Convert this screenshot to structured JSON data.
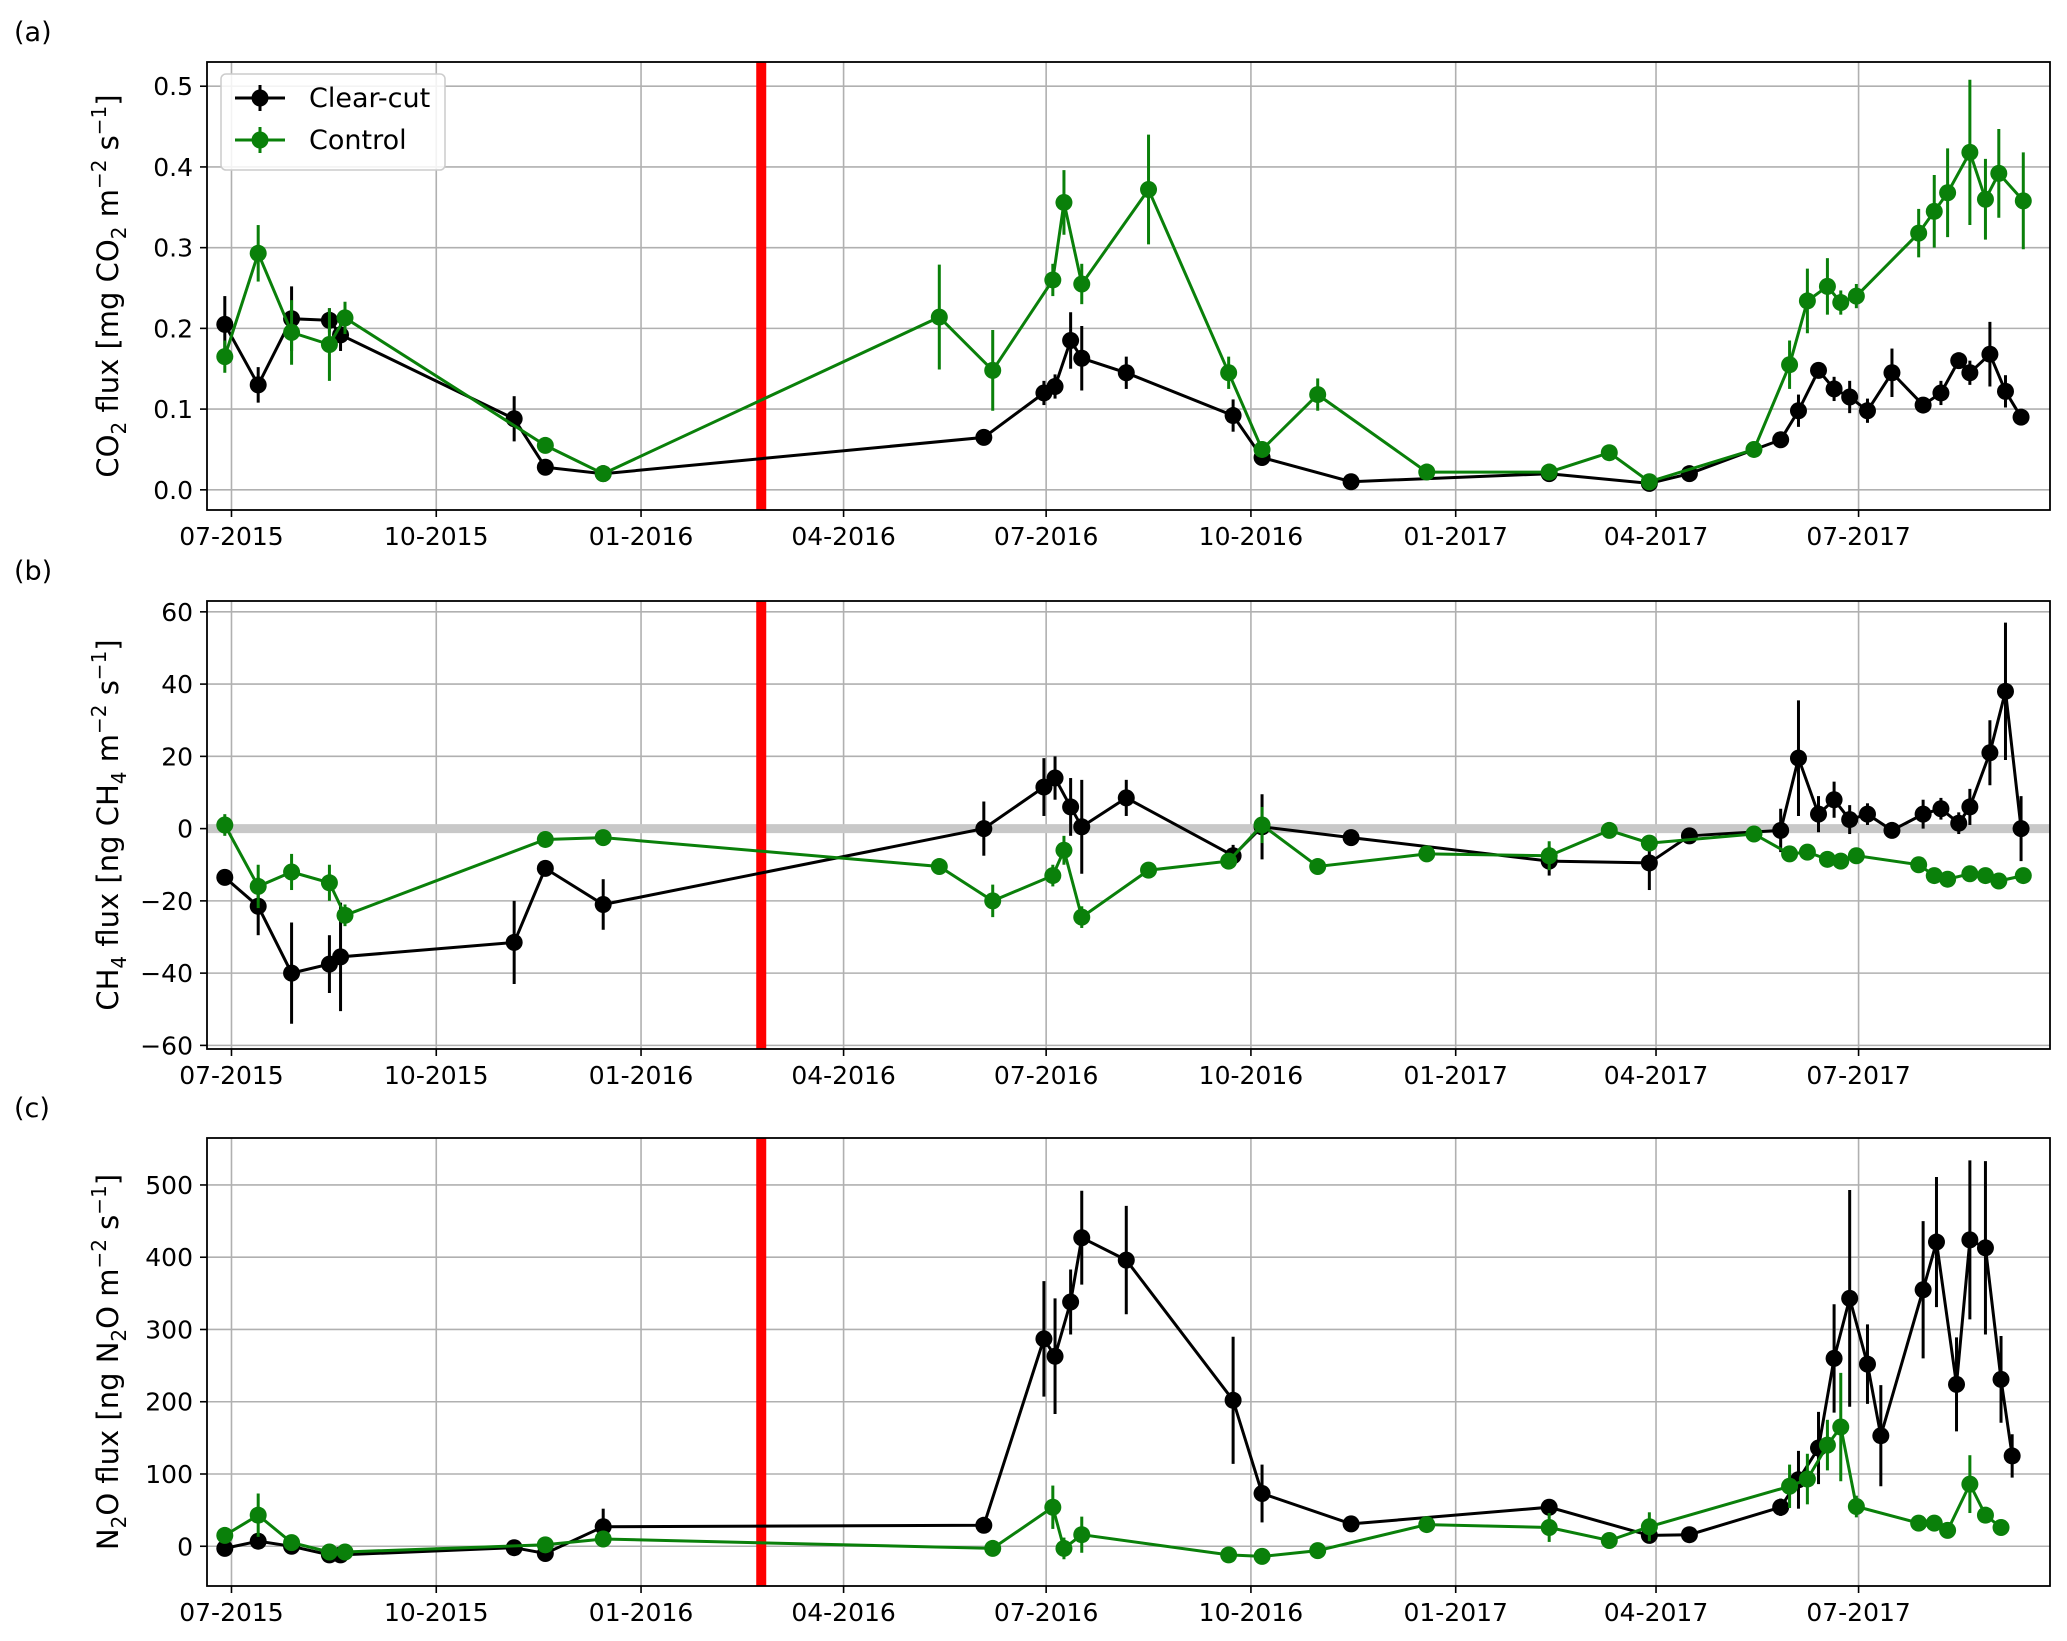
{
  "figure": {
    "clearing_date": "2016-02-24",
    "colors": {
      "clear_cut": "#000000",
      "control": "#0a800a",
      "clearing_line": "#ff0000",
      "zero_line": "#c8c8c8",
      "grid": "#b0b0b0"
    },
    "legend": {
      "entries": [
        "Clear-cut",
        "Control"
      ],
      "placement": "upper-left of panel (a)"
    }
  },
  "chart_data": [
    {
      "type": "line",
      "panel_label": "(a)",
      "ylabel": {
        "pre": "CO",
        "sub1": "2",
        "mid1": " flux [mg CO",
        "sub2": "2",
        "mid2": " m",
        "sup1": "−2",
        "mid3": " s",
        "sup2": "−1",
        "post": "]"
      },
      "xlim": [
        "2015-06-20",
        "2017-09-25"
      ],
      "ylim": [
        -0.025,
        0.53
      ],
      "x_ticks": [
        "2015-07-01",
        "2015-10-01",
        "2016-01-01",
        "2016-04-01",
        "2016-07-01",
        "2016-10-01",
        "2017-01-01",
        "2017-04-01",
        "2017-07-01"
      ],
      "x_tick_labels": [
        "07-2015",
        "10-2015",
        "01-2016",
        "04-2016",
        "07-2016",
        "10-2016",
        "01-2017",
        "04-2017",
        "07-2017"
      ],
      "y_ticks": [
        0.0,
        0.1,
        0.2,
        0.3,
        0.4,
        0.5
      ],
      "y_tick_labels": [
        "0.0",
        "0.1",
        "0.2",
        "0.3",
        "0.4",
        "0.5"
      ],
      "zero_line": false,
      "series": [
        {
          "name": "Clear-cut",
          "x": [
            "2015-06-28",
            "2015-07-13",
            "2015-07-28",
            "2015-08-14",
            "2015-08-19",
            "2015-11-05",
            "2015-11-19",
            "2015-12-15",
            "2016-06-03",
            "2016-06-30",
            "2016-07-05",
            "2016-07-12",
            "2016-07-17",
            "2016-08-06",
            "2016-09-23",
            "2016-10-06",
            "2016-11-15",
            "2017-02-12",
            "2017-03-29",
            "2017-04-16",
            "2017-05-27",
            "2017-06-04",
            "2017-06-13",
            "2017-06-20",
            "2017-06-27",
            "2017-07-05",
            "2017-07-16",
            "2017-07-30",
            "2017-08-07",
            "2017-08-15",
            "2017-08-20",
            "2017-08-29",
            "2017-09-05",
            "2017-09-12"
          ],
          "y": [
            0.205,
            0.13,
            0.212,
            0.21,
            0.192,
            0.088,
            0.028,
            0.02,
            0.065,
            0.12,
            0.128,
            0.185,
            0.163,
            0.145,
            0.092,
            0.04,
            0.01,
            0.02,
            0.008,
            0.02,
            0.062,
            0.098,
            0.148,
            0.125,
            0.115,
            0.098,
            0.145,
            0.105,
            0.12,
            0.16,
            0.145,
            0.168,
            0.122,
            0.09
          ],
          "err": [
            0.035,
            0.022,
            0.04,
            0.015,
            0.02,
            0.028,
            0.008,
            0.005,
            0.008,
            0.015,
            0.015,
            0.035,
            0.04,
            0.02,
            0.02,
            0.01,
            0.005,
            0.005,
            0.005,
            0.006,
            0.01,
            0.02,
            0.01,
            0.015,
            0.02,
            0.015,
            0.03,
            0.01,
            0.015,
            0.01,
            0.015,
            0.04,
            0.02,
            0.01
          ]
        },
        {
          "name": "Control",
          "x": [
            "2015-06-28",
            "2015-07-13",
            "2015-07-28",
            "2015-08-14",
            "2015-08-21",
            "2015-11-19",
            "2015-12-15",
            "2016-05-14",
            "2016-06-07",
            "2016-07-04",
            "2016-07-09",
            "2016-07-17",
            "2016-08-16",
            "2016-09-21",
            "2016-10-06",
            "2016-10-31",
            "2016-12-19",
            "2017-02-12",
            "2017-03-11",
            "2017-03-29",
            "2017-05-15",
            "2017-05-31",
            "2017-06-08",
            "2017-06-17",
            "2017-06-23",
            "2017-06-30",
            "2017-07-28",
            "2017-08-04",
            "2017-08-10",
            "2017-08-20",
            "2017-08-27",
            "2017-09-02",
            "2017-09-13"
          ],
          "y": [
            0.165,
            0.293,
            0.195,
            0.18,
            0.213,
            0.055,
            0.02,
            0.214,
            0.148,
            0.26,
            0.356,
            0.255,
            0.372,
            0.145,
            0.05,
            0.118,
            0.022,
            0.022,
            0.046,
            0.01,
            0.05,
            0.155,
            0.234,
            0.252,
            0.232,
            0.24,
            0.318,
            0.345,
            0.368,
            0.418,
            0.36,
            0.392,
            0.358
          ],
          "err": [
            0.02,
            0.035,
            0.04,
            0.045,
            0.02,
            0.01,
            0.005,
            0.065,
            0.05,
            0.02,
            0.04,
            0.025,
            0.068,
            0.02,
            0.01,
            0.02,
            0.005,
            0.005,
            0.005,
            0.005,
            0.005,
            0.03,
            0.04,
            0.035,
            0.015,
            0.015,
            0.03,
            0.045,
            0.055,
            0.09,
            0.05,
            0.055,
            0.06
          ]
        }
      ]
    },
    {
      "type": "line",
      "panel_label": "(b)",
      "ylabel": {
        "pre": "CH",
        "sub1": "4",
        "mid1": " flux [ng CH",
        "sub2": "4",
        "mid2": " m",
        "sup1": "−2",
        "mid3": " s",
        "sup2": "−1",
        "post": "]"
      },
      "xlim": [
        "2015-06-20",
        "2017-09-25"
      ],
      "ylim": [
        -61,
        63
      ],
      "x_ticks": [
        "2015-07-01",
        "2015-10-01",
        "2016-01-01",
        "2016-04-01",
        "2016-07-01",
        "2016-10-01",
        "2017-01-01",
        "2017-04-01",
        "2017-07-01"
      ],
      "x_tick_labels": [
        "07-2015",
        "10-2015",
        "01-2016",
        "04-2016",
        "07-2016",
        "10-2016",
        "01-2017",
        "04-2017",
        "07-2017"
      ],
      "y_ticks": [
        -60,
        -40,
        -20,
        0,
        20,
        40,
        60
      ],
      "y_tick_labels": [
        "−60",
        "−40",
        "−20",
        "0",
        "20",
        "40",
        "60"
      ],
      "zero_line": true,
      "series": [
        {
          "name": "Clear-cut",
          "x": [
            "2015-06-28",
            "2015-07-13",
            "2015-07-28",
            "2015-08-14",
            "2015-08-19",
            "2015-11-05",
            "2015-11-19",
            "2015-12-15",
            "2016-06-03",
            "2016-06-30",
            "2016-07-05",
            "2016-07-12",
            "2016-07-17",
            "2016-08-06",
            "2016-09-23",
            "2016-10-06",
            "2016-11-15",
            "2017-02-12",
            "2017-03-29",
            "2017-04-16",
            "2017-05-27",
            "2017-06-04",
            "2017-06-13",
            "2017-06-20",
            "2017-06-27",
            "2017-07-05",
            "2017-07-16",
            "2017-07-30",
            "2017-08-07",
            "2017-08-15",
            "2017-08-20",
            "2017-08-29",
            "2017-09-05",
            "2017-09-12"
          ],
          "y": [
            -13.5,
            -21.5,
            -40,
            -37.5,
            -35.5,
            -31.5,
            -11,
            -21,
            0,
            11.5,
            14,
            6,
            0.5,
            8.5,
            -7.5,
            0.5,
            -2.5,
            -9,
            -9.5,
            -2,
            -0.5,
            19.5,
            4,
            8,
            2.5,
            4,
            -0.5,
            4,
            5.5,
            1.5,
            6,
            21,
            38,
            0
          ],
          "err": [
            1.5,
            8,
            14,
            8,
            15,
            11.5,
            2,
            7,
            7.5,
            8,
            6,
            8,
            13,
            5,
            3,
            9,
            2,
            4,
            7.5,
            2,
            6,
            16,
            5,
            5,
            4,
            3,
            2,
            4,
            3,
            3,
            5,
            9,
            19,
            9
          ]
        },
        {
          "name": "Control",
          "x": [
            "2015-06-28",
            "2015-07-13",
            "2015-07-28",
            "2015-08-14",
            "2015-08-21",
            "2015-11-19",
            "2015-12-15",
            "2016-05-14",
            "2016-06-07",
            "2016-07-04",
            "2016-07-09",
            "2016-07-17",
            "2016-08-16",
            "2016-09-21",
            "2016-10-06",
            "2016-10-31",
            "2016-12-19",
            "2017-02-12",
            "2017-03-11",
            "2017-03-29",
            "2017-05-15",
            "2017-05-31",
            "2017-06-08",
            "2017-06-17",
            "2017-06-23",
            "2017-06-30",
            "2017-07-28",
            "2017-08-04",
            "2017-08-10",
            "2017-08-20",
            "2017-08-27",
            "2017-09-02",
            "2017-09-13"
          ],
          "y": [
            1,
            -16,
            -12,
            -15,
            -24,
            -3,
            -2.5,
            -10.5,
            -20,
            -13,
            -6,
            -24.5,
            -11.5,
            -9,
            1,
            -10.5,
            -7,
            -7.5,
            -0.5,
            -4,
            -1.5,
            -7,
            -6.5,
            -8.5,
            -9,
            -7.5,
            -10,
            -13,
            -14,
            -12.5,
            -13,
            -14.5,
            -13
          ],
          "err": [
            3,
            6,
            5,
            5,
            3,
            1.5,
            1.5,
            1.5,
            4.5,
            3,
            4,
            3,
            2,
            2,
            5,
            2,
            2,
            4,
            1.5,
            2,
            2,
            2,
            2,
            2,
            2,
            2,
            2,
            2,
            2,
            2,
            2,
            2,
            2
          ]
        }
      ]
    },
    {
      "type": "line",
      "panel_label": "(c)",
      "ylabel": {
        "pre": "N",
        "sub1": "2",
        "mid1": "O flux [ng N",
        "sub2": "2",
        "mid2": "O m",
        "sup1": "−2",
        "mid3": " s",
        "sup2": "−1",
        "post": "]"
      },
      "xlim": [
        "2015-06-20",
        "2017-09-25"
      ],
      "ylim": [
        -55,
        565
      ],
      "x_ticks": [
        "2015-07-01",
        "2015-10-01",
        "2016-01-01",
        "2016-04-01",
        "2016-07-01",
        "2016-10-01",
        "2017-01-01",
        "2017-04-01",
        "2017-07-01"
      ],
      "x_tick_labels": [
        "07-2015",
        "10-2015",
        "01-2016",
        "04-2016",
        "07-2016",
        "10-2016",
        "01-2017",
        "04-2017",
        "07-2017"
      ],
      "y_ticks": [
        0,
        100,
        200,
        300,
        400,
        500
      ],
      "y_tick_labels": [
        "0",
        "100",
        "200",
        "300",
        "400",
        "500"
      ],
      "zero_line": false,
      "series": [
        {
          "name": "Clear-cut",
          "x": [
            "2015-06-28",
            "2015-07-13",
            "2015-07-28",
            "2015-08-14",
            "2015-08-19",
            "2015-11-05",
            "2015-11-19",
            "2015-12-15",
            "2016-06-03",
            "2016-06-30",
            "2016-07-05",
            "2016-07-12",
            "2016-07-17",
            "2016-08-06",
            "2016-09-23",
            "2016-10-06",
            "2016-11-15",
            "2017-02-12",
            "2017-03-29",
            "2017-04-16",
            "2017-05-27",
            "2017-06-04",
            "2017-06-13",
            "2017-06-20",
            "2017-06-27",
            "2017-07-05",
            "2017-07-11",
            "2017-07-30",
            "2017-08-05",
            "2017-08-14",
            "2017-08-20",
            "2017-08-27",
            "2017-09-03",
            "2017-09-08"
          ],
          "y": [
            -3,
            7,
            0,
            -12,
            -12,
            -2,
            -10,
            27,
            29,
            287,
            263,
            338,
            427,
            396,
            202,
            73,
            31,
            54,
            15,
            16,
            54,
            92,
            136,
            260,
            343,
            252,
            153,
            355,
            421,
            224,
            424,
            413,
            231,
            125
          ],
          "err": [
            5,
            5,
            5,
            6,
            6,
            4,
            5,
            25,
            5,
            80,
            80,
            45,
            65,
            75,
            88,
            40,
            5,
            5,
            6,
            5,
            12,
            40,
            50,
            75,
            150,
            55,
            70,
            95,
            90,
            65,
            110,
            120,
            60,
            30
          ]
        },
        {
          "name": "Control",
          "x": [
            "2015-06-28",
            "2015-07-13",
            "2015-07-28",
            "2015-08-14",
            "2015-08-21",
            "2015-11-19",
            "2015-12-15",
            "2016-06-07",
            "2016-07-04",
            "2016-07-09",
            "2016-07-17",
            "2016-09-21",
            "2016-10-06",
            "2016-10-31",
            "2016-12-19",
            "2017-02-12",
            "2017-03-11",
            "2017-03-29",
            "2017-05-31",
            "2017-06-08",
            "2017-06-17",
            "2017-06-23",
            "2017-06-30",
            "2017-07-28",
            "2017-08-04",
            "2017-08-10",
            "2017-08-20",
            "2017-08-27",
            "2017-09-03"
          ],
          "y": [
            15,
            43,
            5,
            -8,
            -8,
            2,
            10,
            -3,
            54,
            -3,
            16,
            -12,
            -14,
            -6,
            30,
            26,
            8,
            27,
            83,
            93,
            140,
            165,
            55,
            32,
            32,
            22,
            86,
            43,
            26
          ],
          "err": [
            8,
            30,
            8,
            8,
            5,
            5,
            8,
            5,
            30,
            15,
            25,
            6,
            6,
            5,
            8,
            20,
            8,
            20,
            30,
            35,
            35,
            75,
            15,
            5,
            5,
            5,
            40,
            10,
            5
          ]
        }
      ]
    }
  ]
}
